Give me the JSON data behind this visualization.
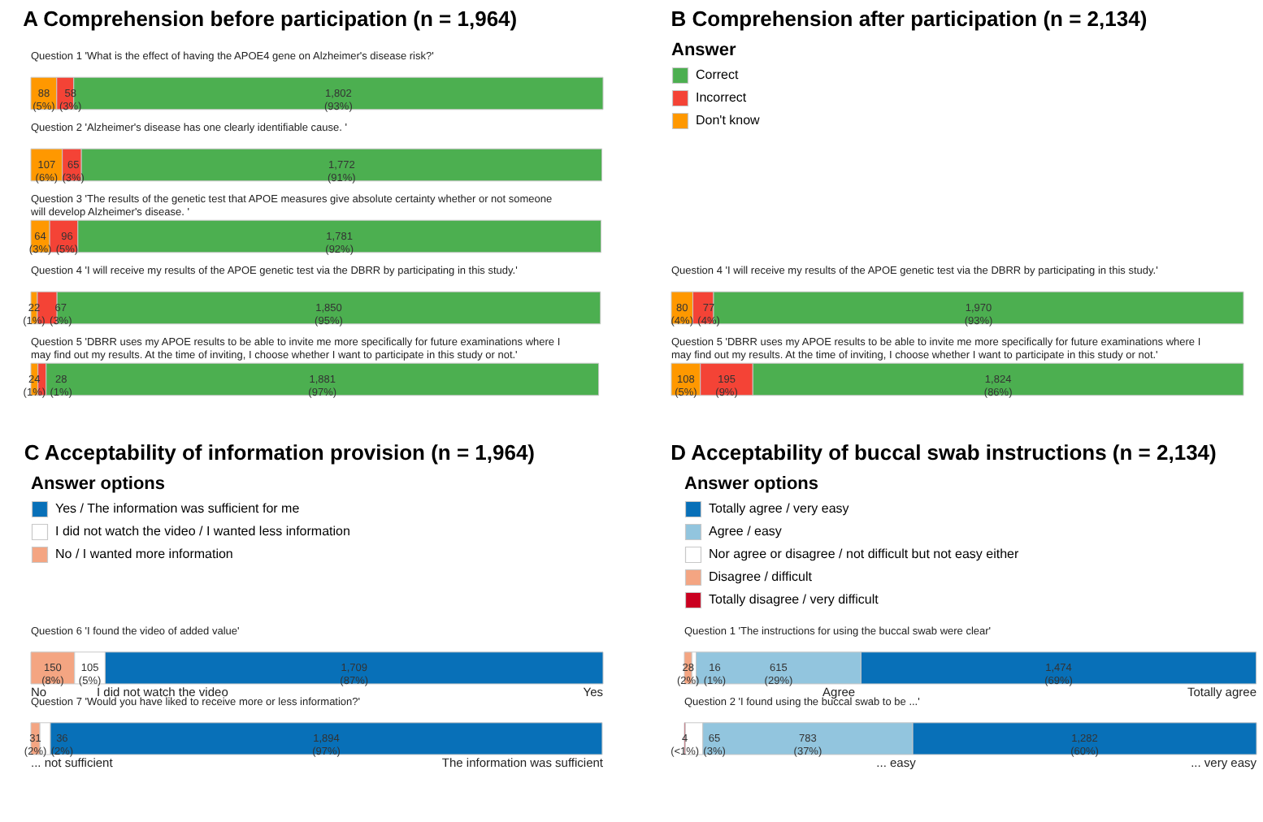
{
  "chart_data": [
    {
      "type": "bar",
      "orientation": "horizontal",
      "stacked": true,
      "legend": false,
      "title": "A  Comprehension before participation (n = 1,964)",
      "categories": [
        "Question 1 'What is the effect of having the APOE4 gene on Alzheimer's disease risk?'",
        "Question 2 'Alzheimer's disease has one clearly identifiable cause. '",
        "Question 3 'The results of the genetic test that APOE measures give absolute certainty whether or not someone will develop Alzheimer's disease. '",
        "Question 4 'I will receive my results of the APOE genetic test via the DBRR by participating in this study.'",
        "Question 5 'DBRR uses my APOE results to be able to invite me more specifically for future examinations where I may find out my results. At the time of inviting, I choose whether I want to participate in this study or not.'"
      ],
      "series": [
        {
          "color": "#ff9800",
          "values": [
            88,
            107,
            64,
            22,
            24
          ],
          "value_labels": [
            "88\n(5%)",
            "107\n(6%)",
            "64\n(3%)",
            "22\n(1%)",
            "24\n(1%)"
          ]
        },
        {
          "color": "#f44336",
          "values": [
            58,
            65,
            96,
            67,
            28
          ],
          "value_labels": [
            "58\n(3%)",
            "65\n(3%)",
            "96\n(5%)",
            "67\n(3%)",
            "28\n(1%)"
          ]
        },
        {
          "color": "#4caf50",
          "values": [
            1802,
            1772,
            1781,
            1850,
            1881
          ],
          "value_labels": [
            "1,802\n(93%)",
            "1,772\n(91%)",
            "1,781\n(92%)",
            "1,850\n(95%)",
            "1,881\n(97%)"
          ]
        }
      ]
    },
    {
      "type": "bar",
      "orientation": "horizontal",
      "stacked": true,
      "legend": "top left",
      "legend_title": "Answer",
      "title": "B  Comprehension after participation (n = 2,134)",
      "categories": [
        "Question 4 'I will receive my results of the APOE genetic test via the DBRR by participating in this study.'",
        "Question 5 'DBRR uses my APOE results to be able to invite me more specifically for future examinations where I may find out my results. At the time of inviting, I choose whether I want to participate in this study or not.'"
      ],
      "series": [
        {
          "name": "Don't know",
          "color": "#ff9800",
          "values": [
            80,
            108
          ],
          "value_labels": [
            "80\n(4%)",
            "108\n(5%)"
          ]
        },
        {
          "name": "Incorrect",
          "color": "#f44336",
          "values": [
            77,
            195
          ],
          "value_labels": [
            "77\n(4%)",
            "195\n(9%)"
          ]
        },
        {
          "name": "Correct",
          "color": "#4caf50",
          "values": [
            1970,
            1824
          ],
          "value_labels": [
            "1,970\n(93%)",
            "1,824\n(86%)"
          ]
        }
      ]
    },
    {
      "type": "bar",
      "orientation": "horizontal",
      "stacked": true,
      "legend": "top left",
      "legend_title": "Answer options",
      "title": "C  Acceptability of information provision (n = 1,964)",
      "categories": [
        "Question 6 'I found the video of added value'",
        "Question 7 'Would you have liked to receive more or less information?'"
      ],
      "series": [
        {
          "name": "No / I wanted more information",
          "color": "#f4a582",
          "values": [
            150,
            31
          ],
          "value_labels": [
            "150\n(8%)",
            "31\n(2%)"
          ]
        },
        {
          "name": "I did not watch the video / I wanted less information",
          "color": "#ffffff",
          "values": [
            105,
            36
          ],
          "value_labels": [
            "105\n(5%)",
            "36\n(2%)"
          ]
        },
        {
          "name": "Yes / The information was sufficient for me",
          "color": "#0870b8",
          "values": [
            1709,
            1894
          ],
          "value_labels": [
            "1,709\n(87%)",
            "1,894\n(97%)"
          ]
        }
      ],
      "annotations": [
        "No",
        "I did not watch the video",
        "Yes",
        "... not sufficient",
        "The information was sufficient"
      ]
    },
    {
      "type": "bar",
      "orientation": "horizontal",
      "stacked": true,
      "legend": "top left",
      "legend_title": "Answer options",
      "title": "D  Acceptability of buccal swab instructions (n = 2,134)",
      "categories": [
        "Question 1 'The instructions for using the buccal swab were clear'",
        "Question 2 'I found using the buccal swab to be ...'"
      ],
      "series": [
        {
          "name": "Totally disagree / very difficult",
          "color": "#ca0020",
          "values": [
            null,
            4
          ],
          "value_labels": [
            null,
            "4\n(<1%)"
          ]
        },
        {
          "name": "Disagree / difficult",
          "color": "#f4a582",
          "values": [
            28,
            null
          ],
          "value_labels": [
            "28\n(2%)",
            null
          ]
        },
        {
          "name": "Nor agree or disagree / not difficult but not easy either",
          "color": "#ffffff",
          "values": [
            16,
            65
          ],
          "value_labels": [
            "16\n(1%)",
            "65\n(3%)"
          ]
        },
        {
          "name": "Agree / easy",
          "color": "#92c5de",
          "values": [
            615,
            783
          ],
          "value_labels": [
            "615\n(29%)",
            "783\n(37%)"
          ]
        },
        {
          "name": "Totally agree / very easy",
          "color": "#0870b8",
          "values": [
            1474,
            1282
          ],
          "value_labels": [
            "1,474\n(69%)",
            "1,282\n(60%)"
          ]
        }
      ],
      "annotations": [
        "Agree",
        "Totally agree",
        "... easy",
        "... very easy"
      ]
    }
  ]
}
